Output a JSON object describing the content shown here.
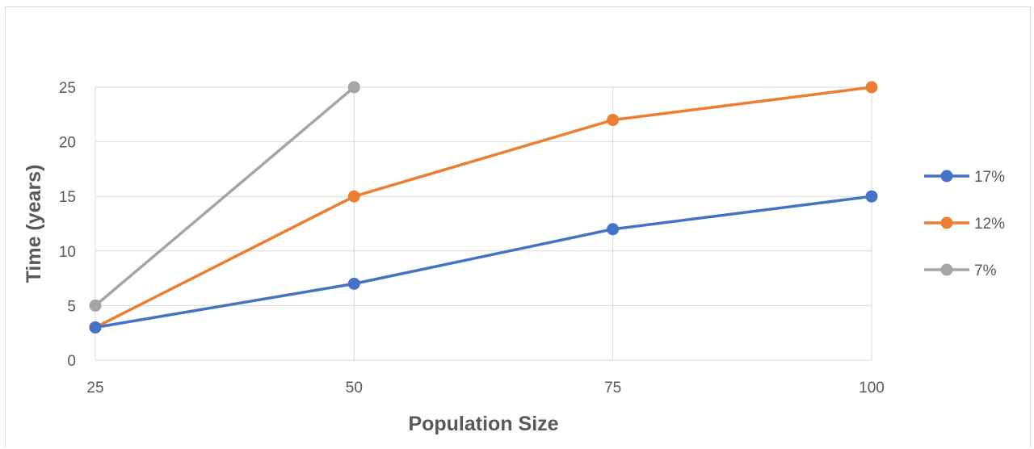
{
  "chart_data": {
    "type": "line",
    "title": "",
    "xlabel": "Population Size",
    "ylabel": "Time (years)",
    "categories": [
      "25",
      "50",
      "75",
      "100"
    ],
    "x": [
      25,
      50,
      75,
      100
    ],
    "ylim": [
      0,
      25
    ],
    "yticks": [
      "0",
      "5",
      "10",
      "15",
      "20",
      "25"
    ],
    "grid": true,
    "legend_position": "right",
    "series": [
      {
        "name": "17%",
        "color": "#4472c4",
        "values": [
          3,
          7,
          12,
          15
        ]
      },
      {
        "name": "12%",
        "color": "#ed7d31",
        "values": [
          3,
          15,
          22,
          25
        ]
      },
      {
        "name": "7%",
        "color": "#a5a5a5",
        "values": [
          5,
          25,
          null,
          null
        ]
      }
    ]
  }
}
